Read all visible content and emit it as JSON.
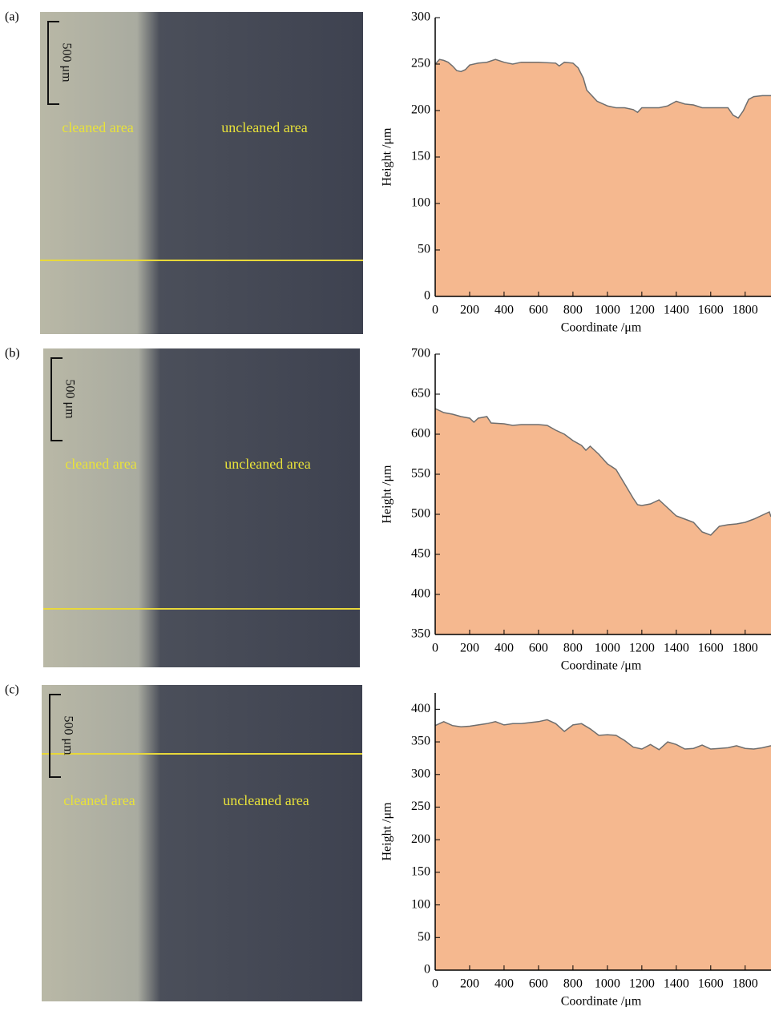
{
  "panels": [
    {
      "label": "(a)",
      "scale_bar": "500 μm",
      "left_text": "cleaned area",
      "right_text": "uncleaned area"
    },
    {
      "label": "(b)",
      "scale_bar": "500 μm",
      "left_text": "cleaned area",
      "right_text": "uncleaned area"
    },
    {
      "label": "(c)",
      "scale_bar": "500 μm",
      "left_text": "cleaned area",
      "right_text": "uncleaned area"
    }
  ],
  "chart_data": [
    {
      "type": "area",
      "x_label": "Coordinate /μm",
      "y_label": "Height /μm",
      "color": "#f5b88f",
      "line_color": "#6e6e6e",
      "xlim": [
        0,
        1950
      ],
      "ylim": [
        0,
        300
      ],
      "xticks": [
        0,
        200,
        400,
        600,
        800,
        1000,
        1200,
        1400,
        1600,
        1800
      ],
      "yticks": [
        0,
        50,
        100,
        150,
        200,
        250,
        300
      ],
      "x": [
        0,
        25,
        50,
        75,
        100,
        125,
        150,
        175,
        200,
        250,
        300,
        350,
        400,
        450,
        500,
        600,
        700,
        720,
        750,
        800,
        830,
        860,
        880,
        900,
        940,
        1000,
        1050,
        1100,
        1150,
        1175,
        1200,
        1250,
        1300,
        1350,
        1400,
        1450,
        1500,
        1550,
        1600,
        1650,
        1700,
        1730,
        1760,
        1790,
        1820,
        1850,
        1900,
        1950
      ],
      "values": [
        250,
        255,
        254,
        252,
        248,
        243,
        242,
        244,
        249,
        251,
        252,
        255,
        252,
        250,
        252,
        252,
        251,
        248,
        252,
        251,
        246,
        235,
        222,
        218,
        210,
        205,
        203,
        203,
        201,
        198,
        203,
        203,
        203,
        205,
        210,
        207,
        206,
        203,
        203,
        203,
        203,
        195,
        192,
        200,
        212,
        215,
        216,
        216
      ]
    },
    {
      "type": "area",
      "x_label": "Coordinate /μm",
      "y_label": "Height /μm",
      "color": "#f5b88f",
      "line_color": "#6e6e6e",
      "xlim": [
        0,
        1950
      ],
      "ylim": [
        350,
        700
      ],
      "xticks": [
        0,
        200,
        400,
        600,
        800,
        1000,
        1200,
        1400,
        1600,
        1800
      ],
      "yticks": [
        350,
        400,
        450,
        500,
        550,
        600,
        650,
        700
      ],
      "x": [
        0,
        50,
        100,
        150,
        200,
        225,
        250,
        300,
        325,
        400,
        450,
        500,
        600,
        650,
        700,
        750,
        800,
        850,
        875,
        900,
        950,
        1000,
        1050,
        1100,
        1150,
        1175,
        1200,
        1250,
        1300,
        1350,
        1400,
        1450,
        1500,
        1550,
        1600,
        1650,
        1700,
        1750,
        1800,
        1850,
        1900,
        1940,
        1950
      ],
      "values": [
        632,
        627,
        625,
        622,
        620,
        615,
        620,
        622,
        614,
        613,
        611,
        612,
        612,
        611,
        605,
        600,
        592,
        586,
        580,
        585,
        575,
        563,
        556,
        538,
        520,
        512,
        511,
        513,
        518,
        508,
        498,
        494,
        490,
        478,
        474,
        485,
        487,
        488,
        490,
        494,
        499,
        503,
        497
      ]
    },
    {
      "type": "area",
      "x_label": "Coordinate /μm",
      "y_label": "Height /μm",
      "color": "#f5b88f",
      "line_color": "#6e6e6e",
      "xlim": [
        0,
        1950
      ],
      "ylim": [
        0,
        425
      ],
      "xticks": [
        0,
        200,
        400,
        600,
        800,
        1000,
        1200,
        1400,
        1600,
        1800
      ],
      "yticks": [
        0,
        50,
        100,
        150,
        200,
        250,
        300,
        350,
        400
      ],
      "x": [
        0,
        50,
        100,
        150,
        200,
        250,
        300,
        350,
        400,
        450,
        500,
        600,
        650,
        700,
        750,
        800,
        850,
        900,
        950,
        1000,
        1050,
        1100,
        1150,
        1200,
        1250,
        1300,
        1350,
        1400,
        1450,
        1500,
        1550,
        1600,
        1650,
        1700,
        1750,
        1800,
        1850,
        1900,
        1950
      ],
      "values": [
        375,
        381,
        375,
        373,
        374,
        376,
        378,
        381,
        376,
        378,
        378,
        381,
        384,
        378,
        366,
        376,
        378,
        370,
        360,
        361,
        360,
        352,
        342,
        339,
        346,
        338,
        350,
        346,
        339,
        340,
        345,
        339,
        340,
        341,
        344,
        340,
        339,
        341,
        344
      ]
    }
  ]
}
